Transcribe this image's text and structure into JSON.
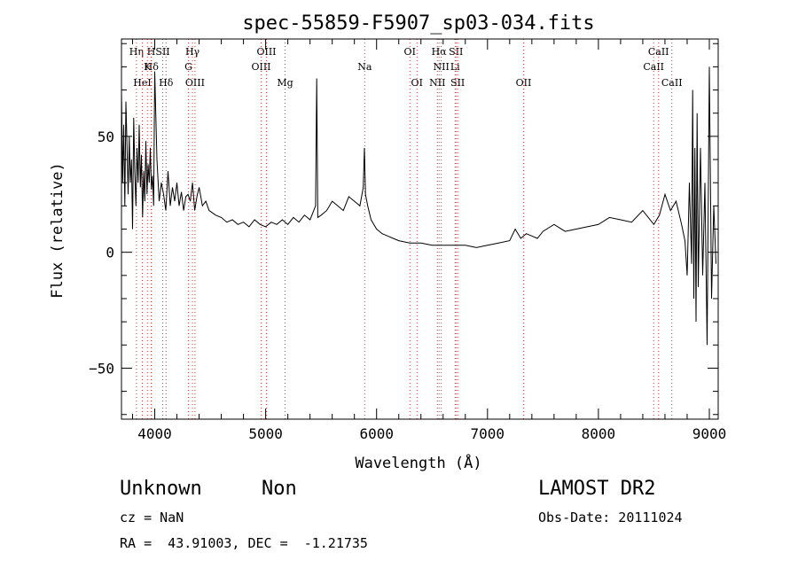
{
  "chart_data": {
    "type": "line",
    "title": "spec-55859-F5907_sp03-034.fits",
    "xlabel": "Wavelength (Å)",
    "ylabel": "Flux (relative)",
    "xlim": [
      3700,
      9080
    ],
    "ylim": [
      -72,
      92
    ],
    "xticks": [
      4000,
      5000,
      6000,
      7000,
      8000,
      9000
    ],
    "yticks": [
      -50,
      0,
      50
    ],
    "grid": false,
    "series": [
      {
        "x": [
          3700,
          3710,
          3720,
          3730,
          3740,
          3750,
          3760,
          3770,
          3780,
          3790,
          3800,
          3810,
          3820,
          3830,
          3840,
          3850,
          3860,
          3870,
          3880,
          3890,
          3900,
          3910,
          3920,
          3930,
          3940,
          3950,
          3960,
          3970,
          3980,
          3990,
          4000,
          4020,
          4040,
          4060,
          4080,
          4100,
          4120,
          4140,
          4160,
          4180,
          4200,
          4220,
          4240,
          4260,
          4280,
          4300,
          4320,
          4340,
          4360,
          4380,
          4400,
          4430,
          4460,
          4490,
          4520,
          4550,
          4600,
          4650,
          4700,
          4750,
          4800,
          4850,
          4900,
          4950,
          5000,
          5050,
          5100,
          5150,
          5200,
          5250,
          5300,
          5350,
          5400,
          5450,
          5460,
          5470,
          5500,
          5550,
          5600,
          5650,
          5700,
          5750,
          5800,
          5850,
          5880,
          5890,
          5900,
          5920,
          5950,
          6000,
          6050,
          6100,
          6150,
          6200,
          6300,
          6400,
          6500,
          6600,
          6700,
          6800,
          6900,
          7000,
          7100,
          7200,
          7250,
          7300,
          7350,
          7400,
          7450,
          7500,
          7600,
          7700,
          7800,
          7900,
          8000,
          8100,
          8200,
          8300,
          8400,
          8450,
          8500,
          8550,
          8600,
          8650,
          8700,
          8750,
          8780,
          8800,
          8820,
          8840,
          8850,
          8860,
          8870,
          8880,
          8890,
          8900,
          8920,
          8940,
          8960,
          8980,
          9000,
          9020,
          9040,
          9060
        ],
        "values": [
          70,
          30,
          55,
          20,
          65,
          45,
          25,
          50,
          30,
          40,
          10,
          58,
          35,
          20,
          45,
          30,
          55,
          28,
          42,
          15,
          35,
          22,
          48,
          25,
          38,
          30,
          45,
          27,
          33,
          20,
          78,
          40,
          22,
          30,
          25,
          18,
          35,
          20,
          28,
          22,
          30,
          20,
          26,
          18,
          24,
          25,
          22,
          30,
          18,
          24,
          28,
          20,
          22,
          18,
          17,
          16,
          15,
          13,
          14,
          12,
          13,
          11,
          14,
          12,
          11,
          13,
          12,
          14,
          12,
          15,
          13,
          16,
          14,
          20,
          75,
          15,
          16,
          18,
          22,
          20,
          18,
          24,
          22,
          20,
          28,
          45,
          25,
          20,
          14,
          10,
          8,
          7,
          6,
          5,
          4,
          4,
          3,
          3,
          3,
          3,
          2,
          3,
          4,
          5,
          10,
          6,
          8,
          7,
          6,
          9,
          12,
          9,
          10,
          11,
          12,
          15,
          14,
          13,
          18,
          15,
          12,
          16,
          25,
          18,
          22,
          12,
          5,
          -10,
          30,
          -5,
          70,
          -20,
          45,
          -30,
          60,
          -15,
          45,
          -10,
          30,
          -40,
          80,
          -20,
          20,
          -5
        ]
      }
    ],
    "lines": [
      {
        "label": "Hη",
        "x": 3835,
        "row": 0
      },
      {
        "label": "Hδ",
        "x": 3970,
        "row": 1
      },
      {
        "label": "HeI",
        "x": 3888,
        "row": 2
      },
      {
        "label": "K",
        "x": 3934,
        "row": 1
      },
      {
        "label": "H",
        "x": 3968,
        "row": 0
      },
      {
        "label": "SII",
        "x": 4072,
        "row": 0
      },
      {
        "label": "Hδ",
        "x": 4102,
        "row": 2
      },
      {
        "label": "Hγ",
        "x": 4340,
        "row": 0
      },
      {
        "label": "G",
        "x": 4304,
        "row": 1
      },
      {
        "label": "OIII",
        "x": 4363,
        "row": 2
      },
      {
        "label": "OIII",
        "x": 4959,
        "row": 1
      },
      {
        "label": "OIII",
        "x": 5007,
        "row": 0
      },
      {
        "label": "Mg",
        "x": 5175,
        "row": 2
      },
      {
        "label": "Na",
        "x": 5893,
        "row": 1
      },
      {
        "label": "OI",
        "x": 6300,
        "row": 0
      },
      {
        "label": "OI",
        "x": 6364,
        "row": 2
      },
      {
        "label": "Hα",
        "x": 6563,
        "row": 0
      },
      {
        "label": "NII",
        "x": 6583,
        "row": 1
      },
      {
        "label": "NII",
        "x": 6548,
        "row": 2
      },
      {
        "label": "SII",
        "x": 6716,
        "row": 0
      },
      {
        "label": "Li",
        "x": 6708,
        "row": 1
      },
      {
        "label": "SII",
        "x": 6731,
        "row": 2
      },
      {
        "label": "OII",
        "x": 7325,
        "row": 2
      },
      {
        "label": "CaII",
        "x": 8498,
        "row": 1
      },
      {
        "label": "CaII",
        "x": 8542,
        "row": 0
      },
      {
        "label": "CaII",
        "x": 8662,
        "row": 2
      }
    ]
  },
  "info": {
    "class_label": "Unknown",
    "subclass_label": "Non",
    "survey": "LAMOST DR2",
    "cz": "cz = NaN",
    "obs_date": "Obs-Date: 20111024",
    "coords": "RA =  43.91003, DEC =  -1.21735"
  },
  "colors": {
    "line_marker": "#e03030",
    "spectrum": "#000000",
    "axis": "#000000"
  }
}
